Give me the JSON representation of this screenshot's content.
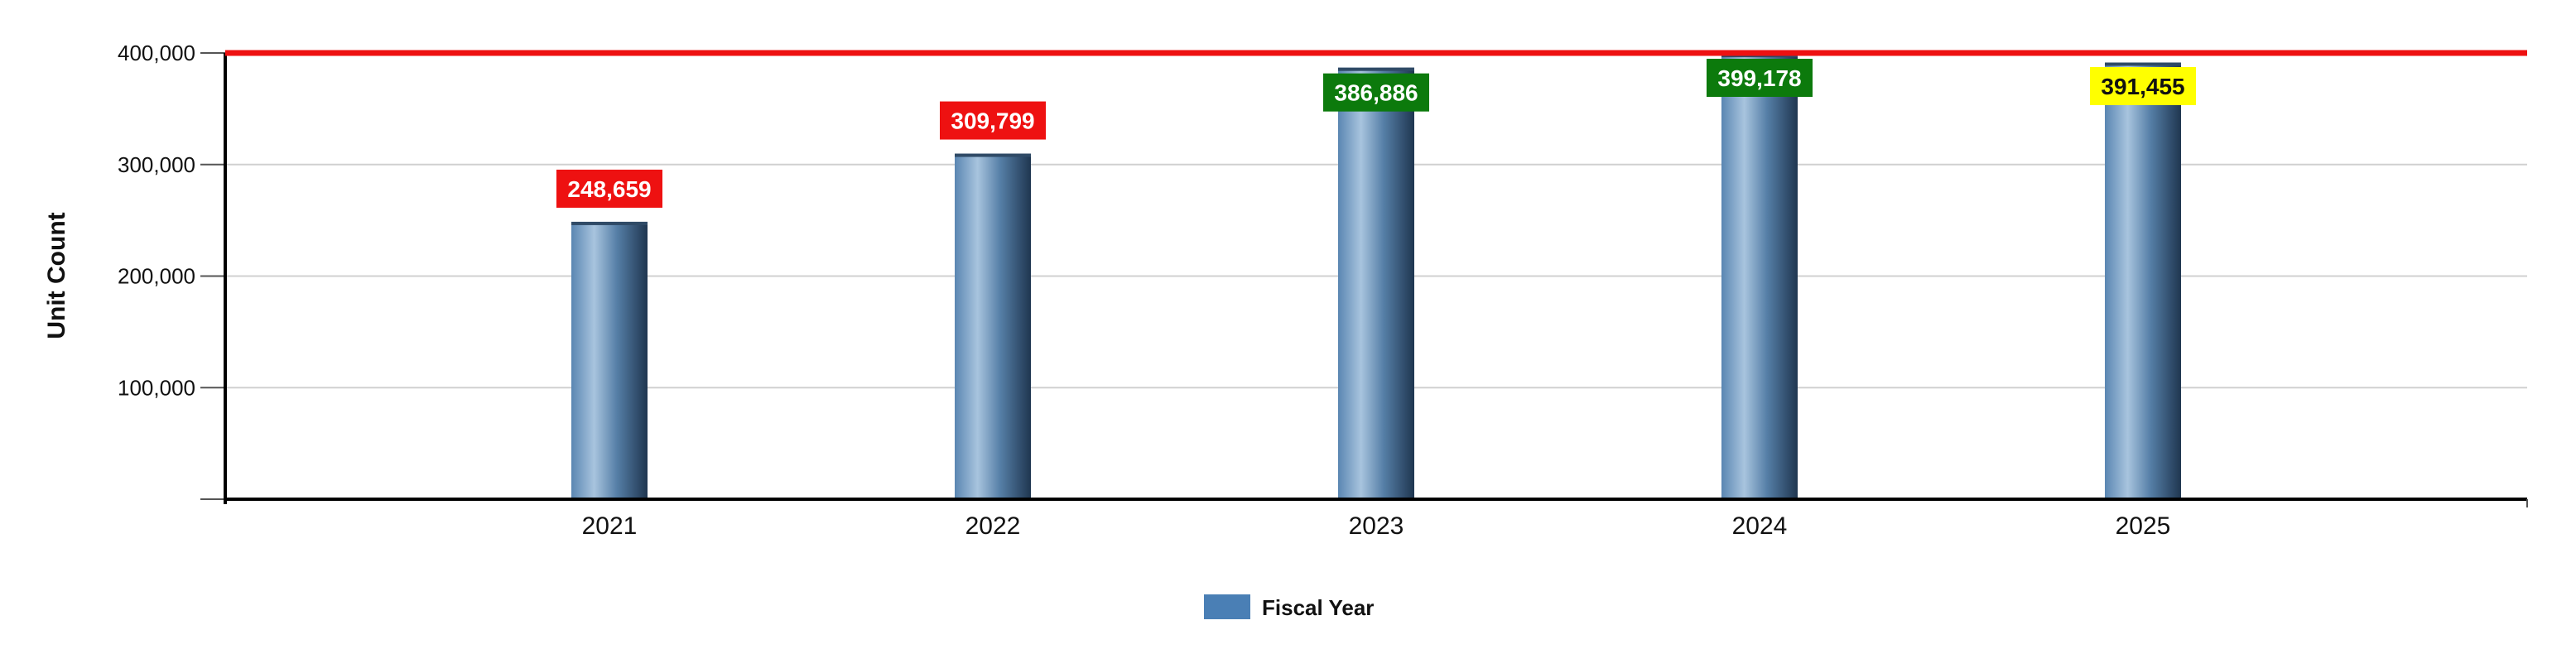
{
  "chart_data": {
    "type": "bar",
    "title": "",
    "xlabel": "",
    "ylabel": "Unit Count",
    "categories": [
      "2021",
      "2022",
      "2023",
      "2024",
      "2025"
    ],
    "series": [
      {
        "name": "Fiscal Year",
        "values": [
          248659,
          309799,
          386886,
          399178,
          391455
        ]
      }
    ],
    "data_labels": [
      "248,659",
      "309,799",
      "386,886",
      "399,178",
      "391,455"
    ],
    "data_label_colors": [
      "#ee1111",
      "#ee1111",
      "#0c7a0c",
      "#0c7a0c",
      "#ffff00"
    ],
    "data_label_text_colors": [
      "#ffffff",
      "#ffffff",
      "#ffffff",
      "#ffffff",
      "#111111"
    ],
    "ylim": [
      0,
      400000
    ],
    "yticks": [
      100000,
      200000,
      300000,
      400000
    ],
    "ytick_labels": [
      "100,000",
      "200,000",
      "300,000",
      "400,000"
    ],
    "reference_line": {
      "value": 400000,
      "color": "#ee1111"
    },
    "grid": true,
    "legend_position": "bottom",
    "colors": {
      "bar": "#4a7fb5",
      "grid": "#d0d0d0",
      "axis": "#000000"
    }
  }
}
